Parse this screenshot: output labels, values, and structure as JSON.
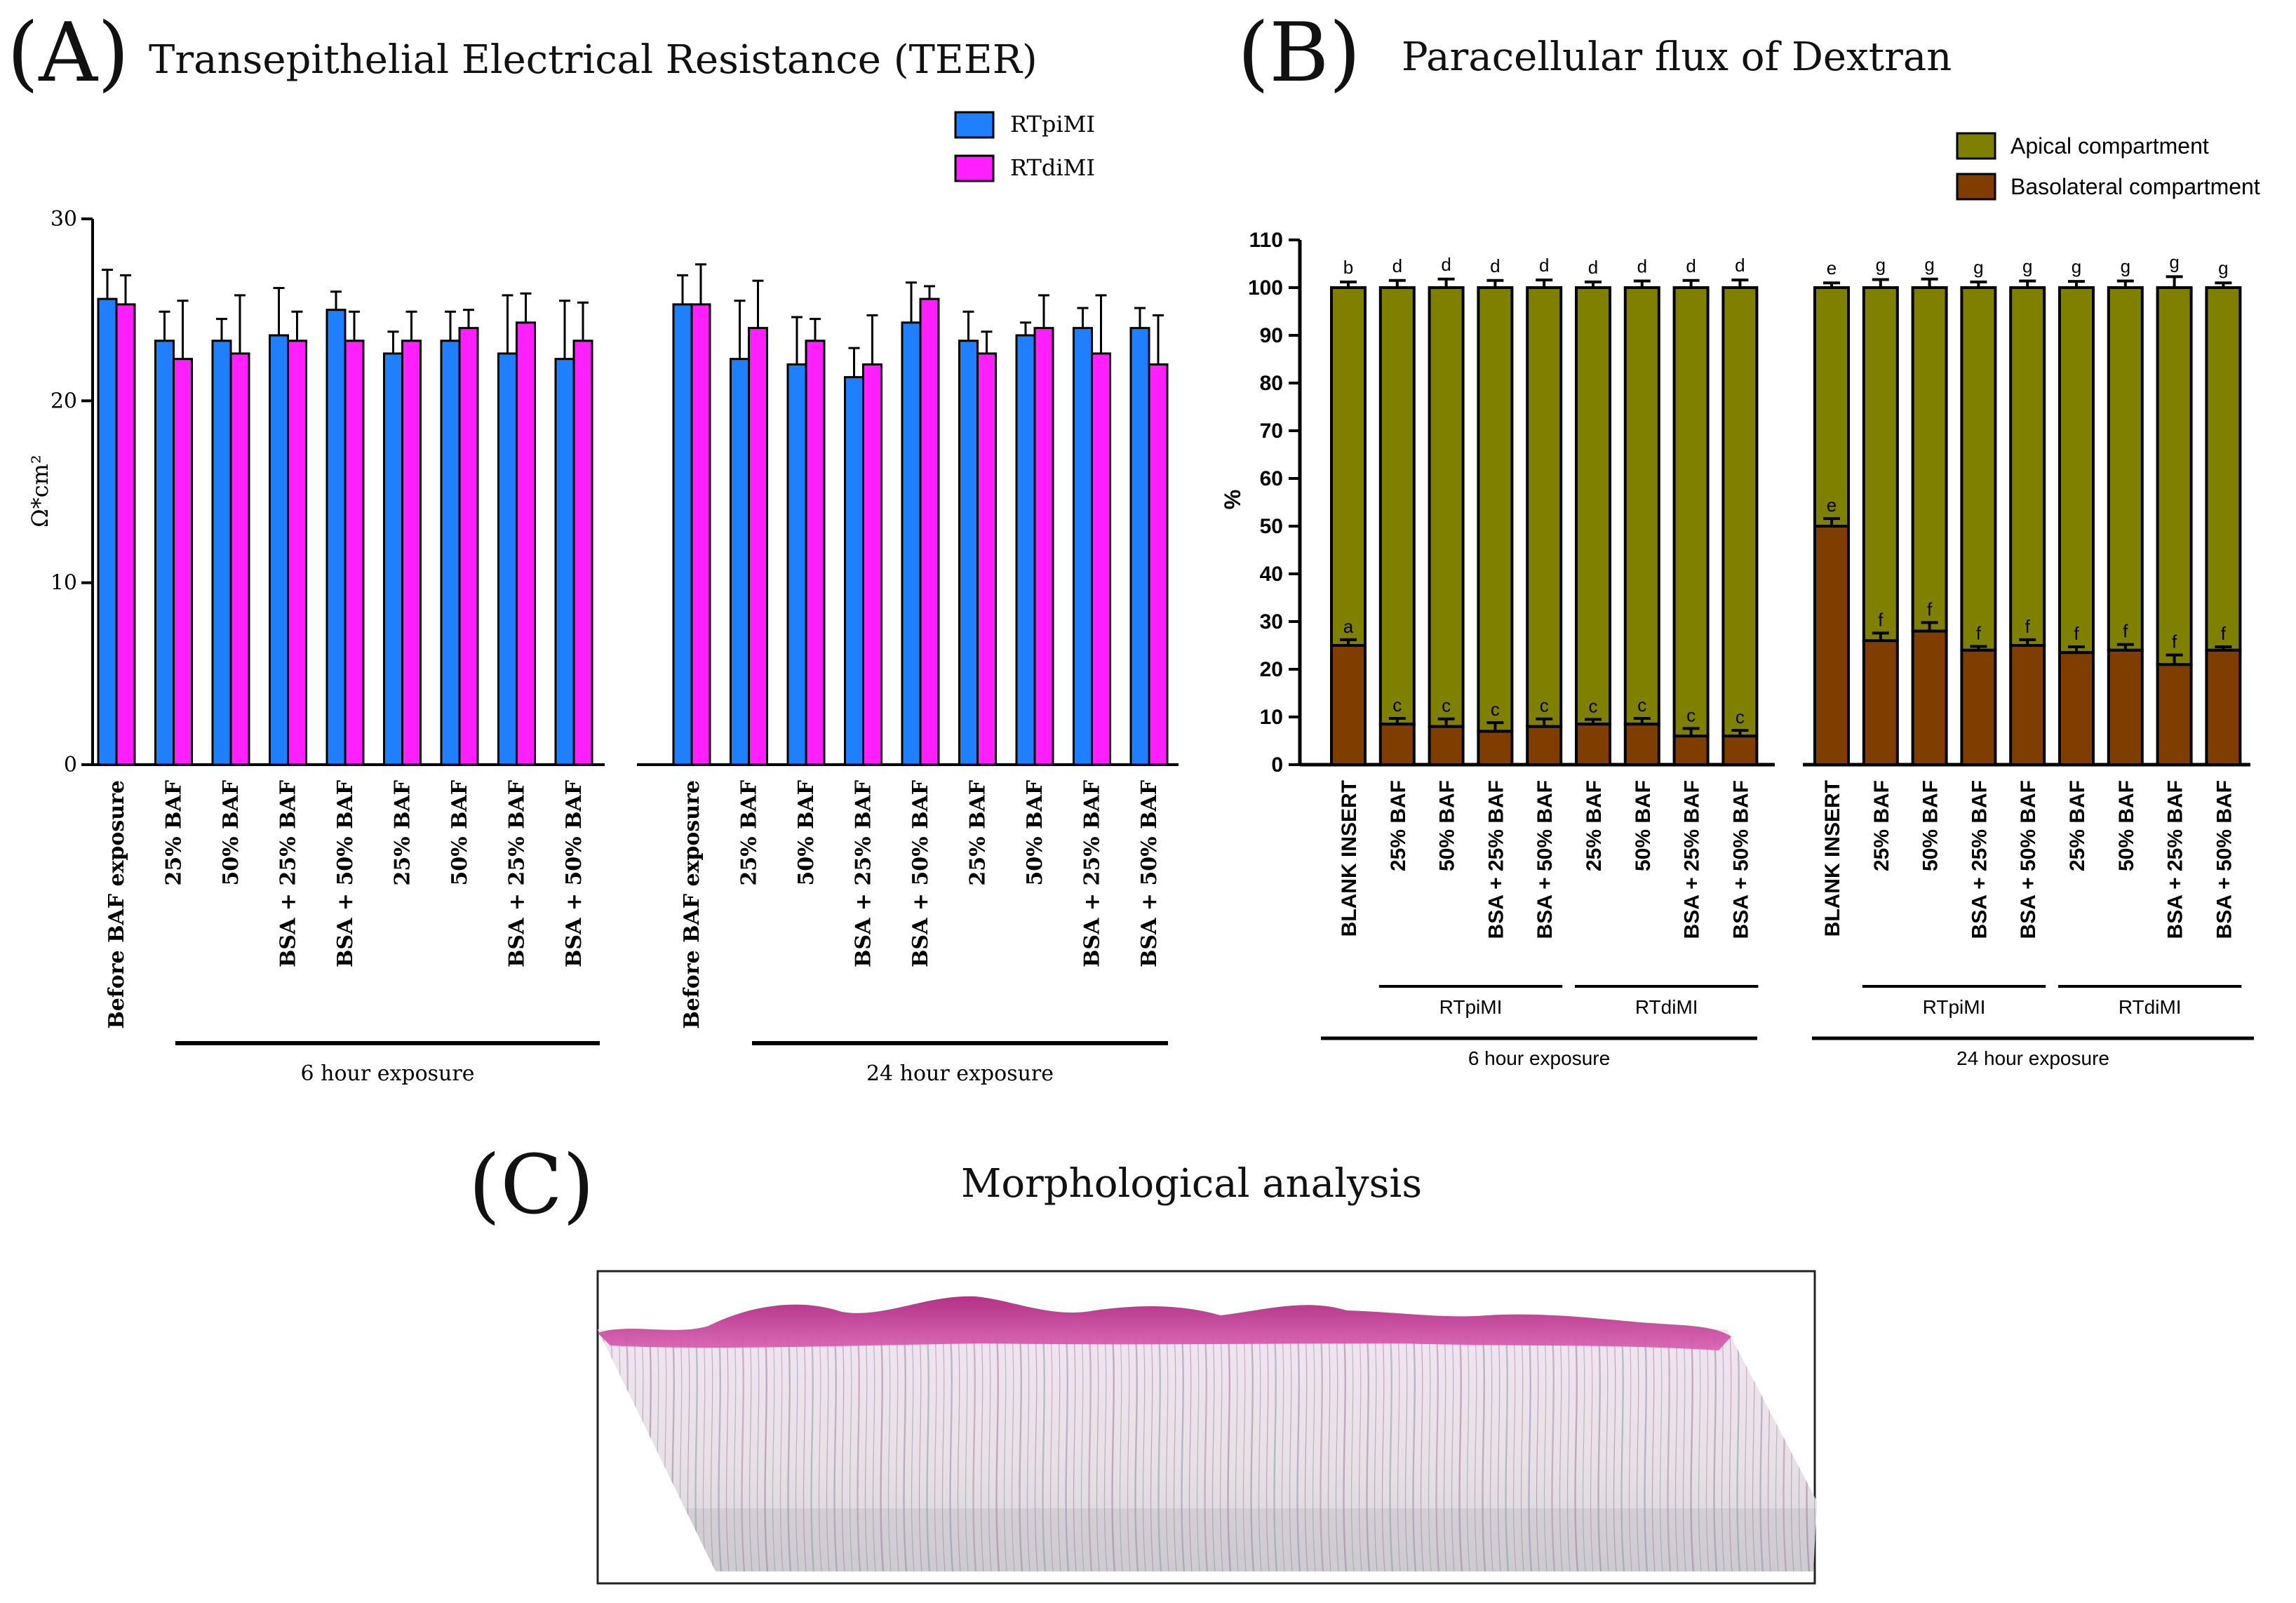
{
  "panels": {
    "a": {
      "letter": "(A)",
      "title": "Transepithelial Electrical Resistance (TEER)"
    },
    "b": {
      "letter": "(B)",
      "title": "Paracellular flux of Dextran"
    },
    "c": {
      "letter": "(C)",
      "title": "Morphological analysis"
    }
  },
  "colors": {
    "rtpimi": "#1f7fff",
    "rtdimi": "#ff1fff",
    "apical": "#7f7f00",
    "basolateral": "#7f3d00"
  },
  "chart_data": [
    {
      "id": "teer",
      "type": "bar",
      "title": "Transepithelial Electrical Resistance (TEER)",
      "ylabel": "Ω*cm²",
      "ylim": [
        0,
        30
      ],
      "yticks": [
        0,
        10,
        20,
        30
      ],
      "legend": [
        "RTpiMI",
        "RTdiMI"
      ],
      "legend_position": "top-right",
      "groups": [
        {
          "name": "6 hour exposure",
          "categories": [
            "Before BAF exposure",
            "25% BAF",
            "50% BAF",
            "BSA + 25% BAF",
            "BSA + 50% BAF",
            "25% BAF",
            "50% BAF",
            "BSA + 25% BAF",
            "BSA + 50% BAF"
          ],
          "series": [
            {
              "name": "RTpiMI",
              "values": [
                25.6,
                23.3,
                23.3,
                23.6,
                25.0,
                22.6,
                23.3,
                22.6,
                22.3
              ],
              "errors": [
                1.6,
                1.6,
                1.2,
                2.6,
                1.0,
                1.2,
                1.6,
                3.2,
                3.2
              ]
            },
            {
              "name": "RTdiMI",
              "values": [
                25.3,
                22.3,
                22.6,
                23.3,
                23.3,
                23.3,
                24.0,
                24.3,
                23.3
              ],
              "errors": [
                1.6,
                3.2,
                3.2,
                1.6,
                1.6,
                1.6,
                1.0,
                1.6,
                2.1
              ]
            }
          ]
        },
        {
          "name": "24 hour exposure",
          "categories": [
            "Before BAF exposure",
            "25% BAF",
            "50% BAF",
            "BSA + 25% BAF",
            "BSA + 50% BAF",
            "25% BAF",
            "50% BAF",
            "BSA + 25% BAF",
            "BSA + 50% BAF"
          ],
          "series": [
            {
              "name": "RTpiMI",
              "values": [
                25.3,
                22.3,
                22.0,
                21.3,
                24.3,
                23.3,
                23.6,
                24.0,
                24.0
              ],
              "errors": [
                1.6,
                3.2,
                2.6,
                1.6,
                2.2,
                1.6,
                0.7,
                1.1,
                1.1
              ]
            },
            {
              "name": "RTdiMI",
              "values": [
                25.3,
                24.0,
                23.3,
                22.0,
                25.6,
                22.6,
                24.0,
                22.6,
                22.0
              ],
              "errors": [
                2.2,
                2.6,
                1.2,
                2.7,
                0.7,
                1.2,
                1.8,
                3.2,
                2.7
              ]
            }
          ]
        }
      ]
    },
    {
      "id": "dextran",
      "type": "stacked-bar",
      "title": "Paracellular flux of Dextran",
      "ylabel": "%",
      "ylim": [
        0,
        110
      ],
      "yticks": [
        0,
        10,
        20,
        30,
        40,
        50,
        60,
        70,
        80,
        90,
        100,
        110
      ],
      "legend": [
        "Apical compartment",
        "Basolateral compartment"
      ],
      "legend_position": "top-right",
      "groups": [
        {
          "name": "6 hour exposure",
          "categories": [
            "BLANK INSERT",
            "25% BAF",
            "50% BAF",
            "BSA + 25% BAF",
            "BSA + 50% BAF",
            "25% BAF",
            "50% BAF",
            "BSA + 25% BAF",
            "BSA + 50% BAF"
          ],
          "subgroups": [
            {
              "label": "RTpiMI",
              "start": 1,
              "end": 4
            },
            {
              "label": "RTdiMI",
              "start": 5,
              "end": 8
            }
          ],
          "basolateral": [
            25,
            8.5,
            8,
            7,
            8,
            8.5,
            8.5,
            6,
            6
          ],
          "basolateral_err": [
            1.2,
            1.2,
            1.6,
            1.8,
            1.6,
            1.0,
            1.2,
            1.6,
            1.2
          ],
          "total_err": [
            1.2,
            1.5,
            1.8,
            1.5,
            1.6,
            1.2,
            1.4,
            1.5,
            1.6
          ],
          "basolateral_letters": [
            "a",
            "c",
            "c",
            "c",
            "c",
            "c",
            "c",
            "c",
            "c"
          ],
          "apical_letters": [
            "b",
            "d",
            "d",
            "d",
            "d",
            "d",
            "d",
            "d",
            "d"
          ]
        },
        {
          "name": "24 hour exposure",
          "categories": [
            "BLANK INSERT",
            "25% BAF",
            "50% BAF",
            "BSA + 25% BAF",
            "BSA + 50% BAF",
            "25% BAF",
            "50% BAF",
            "BSA + 25% BAF",
            "BSA + 50% BAF"
          ],
          "subgroups": [
            {
              "label": "RTpiMI",
              "start": 1,
              "end": 4
            },
            {
              "label": "RTdiMI",
              "start": 5,
              "end": 8
            }
          ],
          "basolateral": [
            50,
            26,
            28,
            24,
            25,
            23.5,
            24,
            21,
            24
          ],
          "basolateral_err": [
            1.6,
            1.6,
            1.8,
            0.8,
            1.2,
            1.2,
            1.2,
            2.0,
            0.7
          ],
          "total_err": [
            1.0,
            1.7,
            1.8,
            1.2,
            1.4,
            1.3,
            1.4,
            2.3,
            1.0
          ],
          "basolateral_letters": [
            "e",
            "f",
            "f",
            "f",
            "f",
            "f",
            "f",
            "f",
            "f"
          ],
          "apical_letters": [
            "e",
            "g",
            "g",
            "g",
            "g",
            "g",
            "g",
            "g",
            "g"
          ]
        }
      ]
    }
  ]
}
